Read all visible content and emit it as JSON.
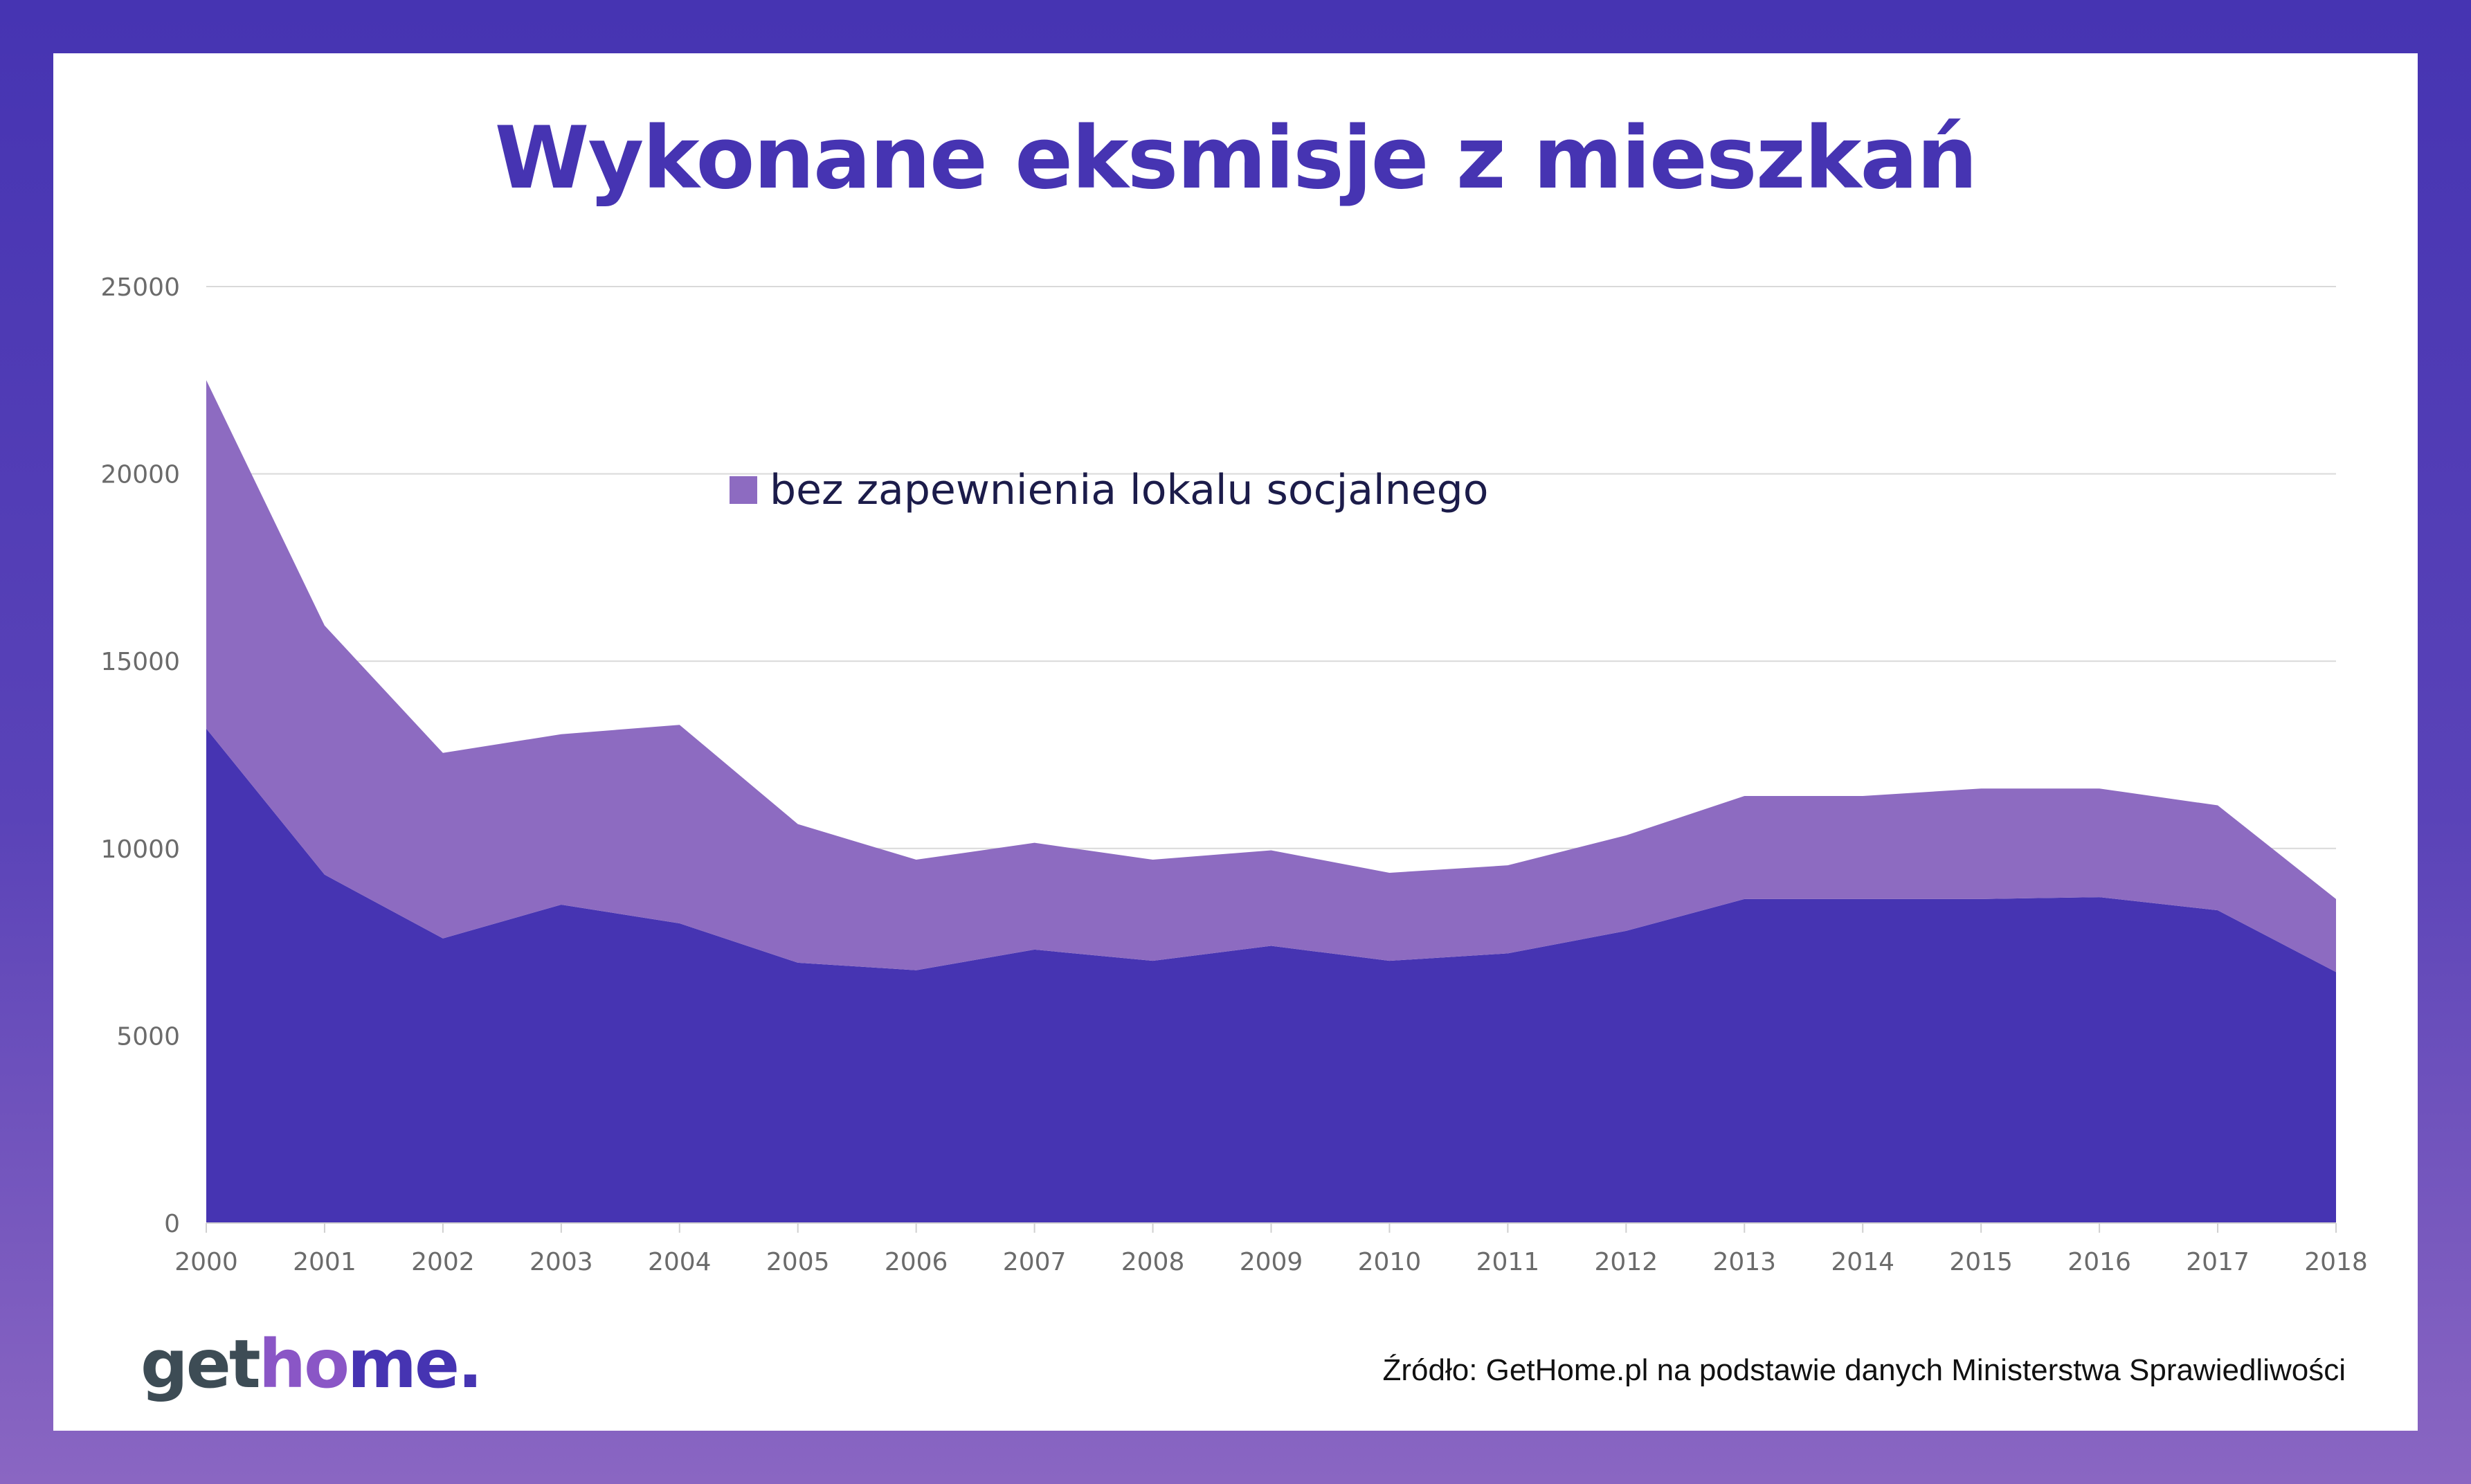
{
  "title": "Wykonane eksmisje z mieszkań",
  "source": "Źródło: GetHome.pl na podstawie danych Ministerstwa Sprawiedliwości",
  "logo": {
    "part1": "get",
    "part2": "ho",
    "part3": "me."
  },
  "colors": {
    "frame": "#4634b2",
    "series_bottom": "#4634b2",
    "series_top": "#8d6bc1",
    "grid": "#d9d9d9",
    "title": "#4634b2"
  },
  "chart_data": {
    "type": "area",
    "stacked": true,
    "x": [
      "2000",
      "2001",
      "2002",
      "2003",
      "2004",
      "2005",
      "2006",
      "2007",
      "2008",
      "2009",
      "2010",
      "2011",
      "2012",
      "2013",
      "2014",
      "2015",
      "2016",
      "2017",
      "2018"
    ],
    "series": [
      {
        "name": "",
        "color": "#4634b2",
        "values": [
          13200,
          9300,
          7600,
          8500,
          8000,
          6950,
          6750,
          7300,
          7000,
          7400,
          7000,
          7200,
          7800,
          8650,
          8650,
          8650,
          8700,
          8350,
          6700
        ]
      },
      {
        "name": "bez zapewnienia lokalu socjalnego",
        "color": "#8d6bc1",
        "values": [
          9300,
          6650,
          4950,
          4550,
          5300,
          3700,
          2950,
          2850,
          2700,
          2550,
          2350,
          2350,
          2550,
          2750,
          2750,
          2950,
          2900,
          2800,
          1950
        ]
      }
    ],
    "y_ticks": [
      "0",
      "5000",
      "10000",
      "15000",
      "20000",
      "25000"
    ],
    "ylim": [
      0,
      25000
    ],
    "grid": true,
    "legend": "top-center"
  }
}
